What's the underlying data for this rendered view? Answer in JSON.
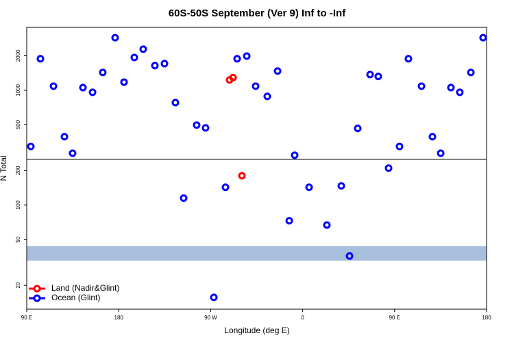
{
  "chart_data": {
    "type": "scatter",
    "title": "60S-50S September (Ver 9)   Inf to -Inf",
    "x_label": "Longitude (deg E)",
    "y_label": "N Total",
    "log_y": true,
    "legend": "bottom-left",
    "xlim": [
      90,
      540
    ],
    "ylim": [
      12.4,
      3530
    ],
    "xticks": [
      {
        "value": 90,
        "label": "90 E"
      },
      180,
      {
        "value": 270,
        "label": "90 W"
      },
      {
        "value": 360,
        "label": "0"
      },
      {
        "value": 450,
        "label": "90 E"
      },
      {
        "value": 540,
        "label": "180"
      }
    ],
    "yticks": [
      20,
      50,
      100,
      200,
      500,
      1000,
      2000
    ],
    "hline": 250,
    "series": [
      {
        "name": "Land (Nadir&Glint)",
        "color": "#ff0000",
        "x": [
          288.5,
          291.9,
          300.6
        ],
        "values": [
          1230,
          1290,
          180
        ]
      },
      {
        "name": "Ocean (Glint)",
        "color": "#0000ff",
        "x": [
          94,
          103.4,
          116.2,
          126.9,
          134.9,
          145,
          154.4,
          164.4,
          176.5,
          185.2,
          195.3,
          204,
          215.4,
          224.8,
          235.5,
          243.6,
          256.3,
          265,
          273.1,
          284.5,
          295.9,
          305.3,
          314,
          325.4,
          335.5,
          346.9,
          352.2,
          366.3,
          383.7,
          397.8,
          405.9,
          413.9,
          426,
          434,
          444.1,
          454.8,
          463.5,
          476.3,
          487,
          495.1,
          505.1,
          513.8,
          524.6,
          536.6
        ],
        "values": [
          324,
          1880,
          1085,
          394,
          283,
          1055,
          960,
          1430,
          2870,
          1177,
          1930,
          2280,
          1640,
          1705,
          781,
          115,
          497,
          470,
          15.7,
          143,
          1880,
          1985,
          1085,
          885,
          1470,
          73,
          272,
          143,
          67,
          147,
          36,
          465,
          1370,
          1320,
          210,
          324,
          1880,
          1085,
          394,
          283,
          1055,
          960,
          1430,
          2870
        ]
      }
    ]
  }
}
